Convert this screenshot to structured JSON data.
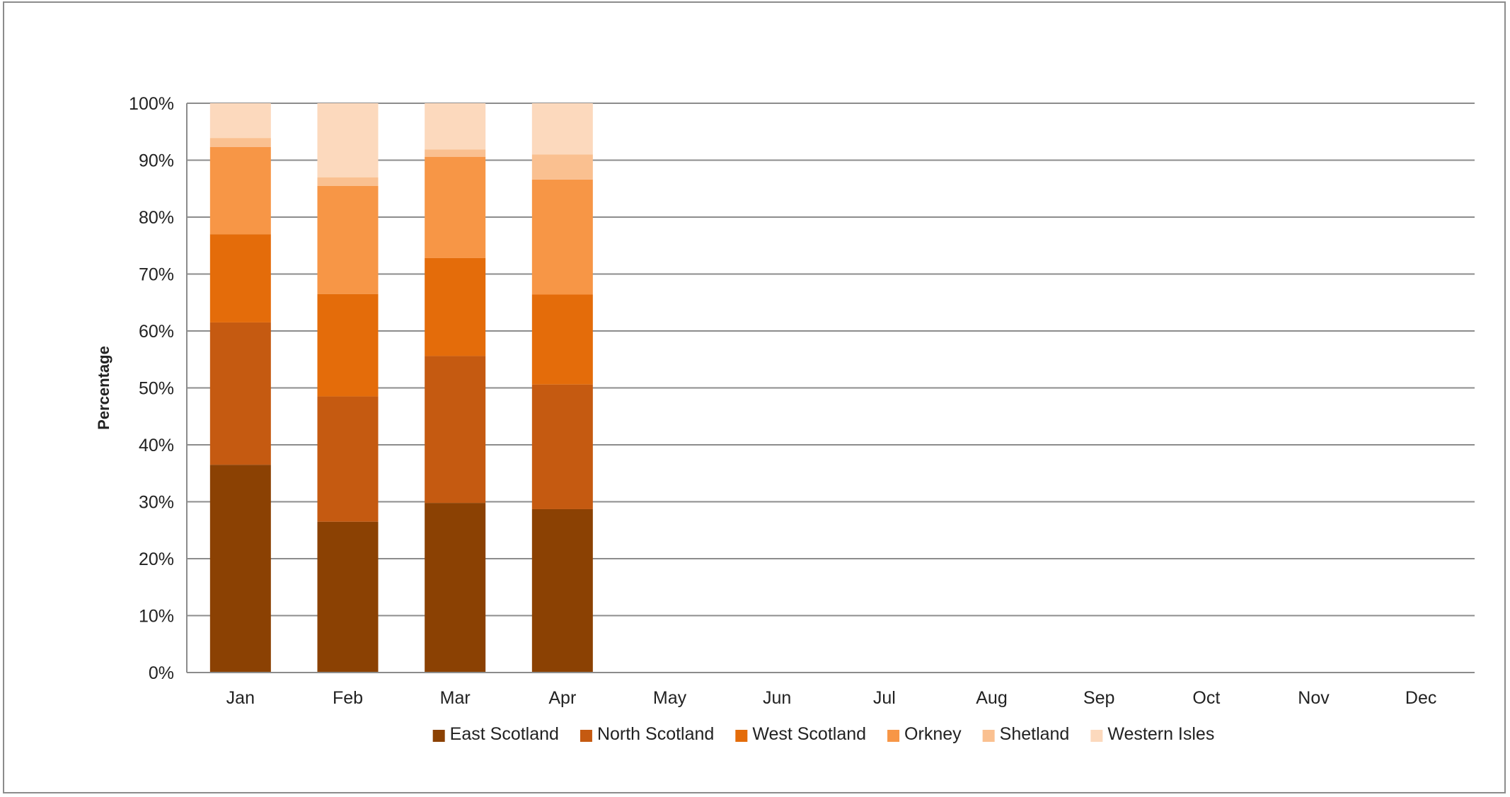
{
  "chart_data": {
    "type": "bar",
    "stacked": true,
    "percent_stacked": true,
    "title": "",
    "xlabel": "",
    "ylabel": "Percentage",
    "ylim": [
      0,
      100
    ],
    "y_ticks": [
      "0%",
      "10%",
      "20%",
      "30%",
      "40%",
      "50%",
      "60%",
      "70%",
      "80%",
      "90%",
      "100%"
    ],
    "y_tick_values": [
      0,
      10,
      20,
      30,
      40,
      50,
      60,
      70,
      80,
      90,
      100
    ],
    "grid": true,
    "legend_position": "bottom",
    "categories": [
      "Jan",
      "Feb",
      "Mar",
      "Apr",
      "May",
      "Jun",
      "Jul",
      "Aug",
      "Sep",
      "Oct",
      "Nov",
      "Dec"
    ],
    "series": [
      {
        "name": "East Scotland",
        "color": "#8B4103",
        "values": [
          36.5,
          26.5,
          29.8,
          28.7,
          null,
          null,
          null,
          null,
          null,
          null,
          null,
          null
        ]
      },
      {
        "name": "North Scotland",
        "color": "#C55A11",
        "values": [
          25.0,
          22.0,
          25.8,
          21.9,
          null,
          null,
          null,
          null,
          null,
          null,
          null,
          null
        ]
      },
      {
        "name": "West Scotland",
        "color": "#E46C0A",
        "values": [
          15.5,
          18.0,
          17.2,
          15.8,
          null,
          null,
          null,
          null,
          null,
          null,
          null,
          null
        ]
      },
      {
        "name": "Orkney",
        "color": "#F79646",
        "values": [
          15.3,
          19.0,
          17.8,
          20.2,
          null,
          null,
          null,
          null,
          null,
          null,
          null,
          null
        ]
      },
      {
        "name": "Shetland",
        "color": "#FAC090",
        "values": [
          1.6,
          1.5,
          1.3,
          4.4,
          null,
          null,
          null,
          null,
          null,
          null,
          null,
          null
        ]
      },
      {
        "name": "Western Isles",
        "color": "#FCD9BD",
        "values": [
          6.1,
          13.0,
          8.1,
          9.0,
          null,
          null,
          null,
          null,
          null,
          null,
          null,
          null
        ]
      }
    ]
  }
}
